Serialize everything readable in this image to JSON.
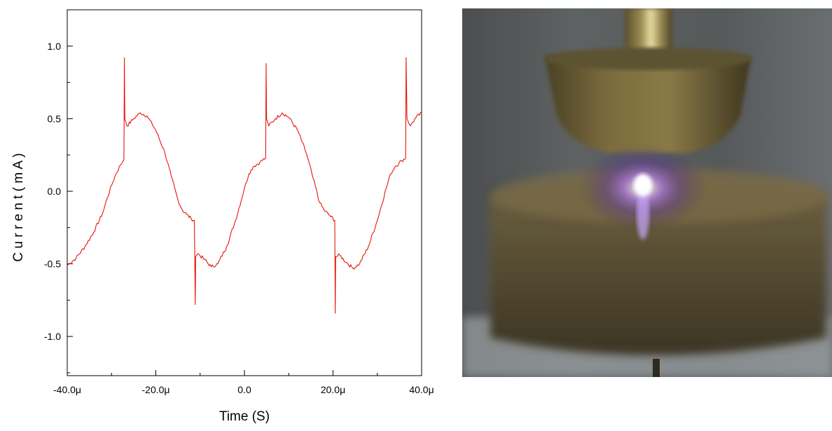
{
  "chart_data": {
    "type": "line",
    "title": "",
    "xlabel": "Time (S)",
    "ylabel": "C u r r e n t  ( m A )",
    "xlim": [
      -40,
      40
    ],
    "ylim": [
      -1.27,
      1.25
    ],
    "x_unit": "μs",
    "grid": false,
    "legend": "none",
    "x_ticks": [
      {
        "value": -40,
        "label": "-40.0μ"
      },
      {
        "value": -20,
        "label": "-20.0μ"
      },
      {
        "value": 0,
        "label": "0.0"
      },
      {
        "value": 20,
        "label": "20.0μ"
      },
      {
        "value": 40,
        "label": "40.0μ"
      }
    ],
    "y_ticks": [
      {
        "value": 1.0,
        "label": "1.0"
      },
      {
        "value": 0.5,
        "label": "0.5"
      },
      {
        "value": 0.0,
        "label": "0.0"
      },
      {
        "value": -0.5,
        "label": "-0.5"
      },
      {
        "value": -1.0,
        "label": "-1.0"
      }
    ],
    "series": [
      {
        "color": "#e8150c",
        "points": [
          [
            -40,
            -0.51
          ],
          [
            -38,
            -0.46
          ],
          [
            -36,
            -0.38
          ],
          [
            -34,
            -0.28
          ],
          [
            -32,
            -0.15
          ],
          [
            -31,
            -0.05
          ],
          [
            -30,
            0.04
          ],
          [
            -29,
            0.12
          ],
          [
            -28,
            0.18
          ],
          [
            -27.2,
            0.22
          ],
          [
            -27.1,
            0.92
          ],
          [
            -27.0,
            0.5
          ],
          [
            -26.5,
            0.45
          ],
          [
            -25,
            0.5
          ],
          [
            -23.5,
            0.54
          ],
          [
            -22,
            0.52
          ],
          [
            -20,
            0.42
          ],
          [
            -18,
            0.27
          ],
          [
            -16.5,
            0.1
          ],
          [
            -15,
            -0.06
          ],
          [
            -14,
            -0.13
          ],
          [
            -13,
            -0.16
          ],
          [
            -12,
            -0.19
          ],
          [
            -11.3,
            -0.2
          ],
          [
            -11.1,
            -0.78
          ],
          [
            -11.0,
            -0.45
          ],
          [
            -10.5,
            -0.43
          ],
          [
            -9,
            -0.47
          ],
          [
            -7.5,
            -0.52
          ],
          [
            -6,
            -0.5
          ],
          [
            -4,
            -0.38
          ],
          [
            -2,
            -0.2
          ],
          [
            0,
            0.02
          ],
          [
            1,
            0.12
          ],
          [
            2,
            0.17
          ],
          [
            3.5,
            0.2
          ],
          [
            4.8,
            0.23
          ],
          [
            4.9,
            0.88
          ],
          [
            5.0,
            0.5
          ],
          [
            5.5,
            0.45
          ],
          [
            7,
            0.5
          ],
          [
            8.5,
            0.54
          ],
          [
            10,
            0.51
          ],
          [
            12,
            0.42
          ],
          [
            14,
            0.26
          ],
          [
            15.5,
            0.09
          ],
          [
            17,
            -0.08
          ],
          [
            18,
            -0.13
          ],
          [
            19,
            -0.16
          ],
          [
            20.4,
            -0.2
          ],
          [
            20.5,
            -0.84
          ],
          [
            20.6,
            -0.45
          ],
          [
            21.5,
            -0.44
          ],
          [
            23,
            -0.49
          ],
          [
            24.5,
            -0.53
          ],
          [
            26,
            -0.5
          ],
          [
            28,
            -0.38
          ],
          [
            30,
            -0.2
          ],
          [
            32,
            0.02
          ],
          [
            33,
            0.12
          ],
          [
            34,
            0.17
          ],
          [
            35.5,
            0.21
          ],
          [
            36.4,
            0.23
          ],
          [
            36.5,
            0.92
          ],
          [
            36.7,
            0.5
          ],
          [
            37.5,
            0.45
          ],
          [
            38.5,
            0.5
          ],
          [
            40,
            0.54
          ]
        ]
      }
    ]
  },
  "photo": {
    "subject": "glowing-plasma-discharge-between-electrodes",
    "glow_color": "#c79bff"
  }
}
